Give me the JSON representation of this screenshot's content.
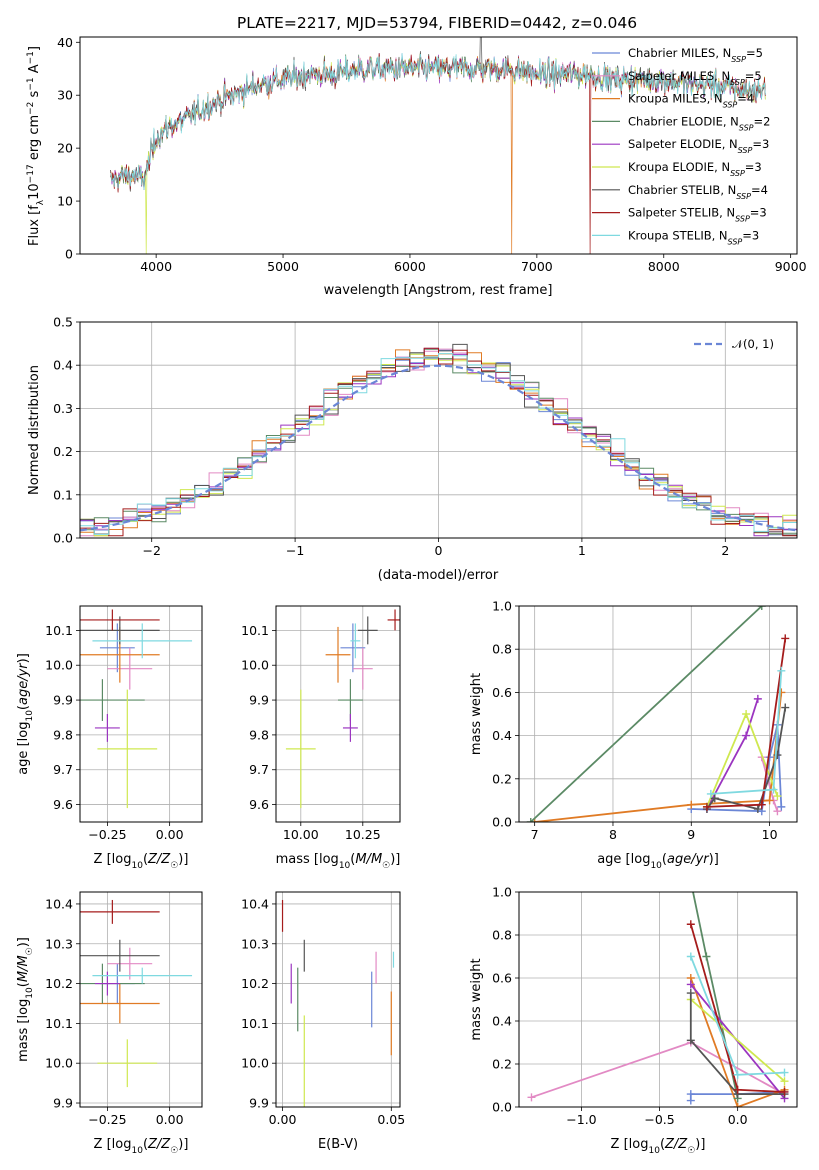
{
  "title": "PLATE=2217, MJD=53794, FIBERID=0442, z=0.046",
  "colors": {
    "Chabrier MILES": "#6b86d6",
    "Salpeter MILES": "#e28ac4",
    "Kroupa MILES": "#e07b25",
    "Chabrier ELODIE": "#5b8a65",
    "Salpeter ELODIE": "#9b35c0",
    "Kroupa ELODIE": "#cfe850",
    "Chabrier STELIB": "#555555",
    "Salpeter STELIB": "#a51c1c",
    "Kroupa STELIB": "#7fd9e0"
  },
  "chart_data": [
    {
      "type": "line",
      "id": "spectrum",
      "title": "PLATE=2217, MJD=53794, FIBERID=0442, z=0.046",
      "xlabel": "wavelength [Angstrom, rest frame]",
      "ylabel": "Flux [fλ10⁻¹⁷ erg cm⁻² s⁻¹ A⁻¹]",
      "xlim": [
        3400,
        9050
      ],
      "ylim": [
        0,
        41
      ],
      "xticks": [
        4000,
        5000,
        6000,
        7000,
        8000,
        9000
      ],
      "yticks": [
        0,
        10,
        20,
        30,
        40
      ],
      "grid": false,
      "legend_position": "right",
      "continuum": {
        "x": [
          3640,
          3800,
          3900,
          4000,
          4100,
          4200,
          4400,
          4600,
          4800,
          5000,
          5200,
          5400,
          5600,
          5800,
          6000,
          6200,
          6400,
          6600,
          6800,
          7000,
          7200,
          7400,
          7600,
          7800,
          8000,
          8200,
          8400,
          8600,
          8800
        ],
        "y": [
          14,
          15,
          14,
          22,
          24,
          25,
          28,
          30,
          32,
          33,
          34,
          34,
          35,
          35,
          35,
          35,
          35,
          35,
          35,
          34,
          34,
          34,
          33,
          33,
          33,
          32,
          32,
          31,
          31
        ]
      },
      "series": [
        {
          "name": "Chabrier MILES",
          "nssp": "5"
        },
        {
          "name": "Salpeter MILES",
          "nssp": "5"
        },
        {
          "name": "Kroupa MILES",
          "nssp": "4"
        },
        {
          "name": "Chabrier ELODIE",
          "nssp": "2"
        },
        {
          "name": "Salpeter ELODIE",
          "nssp": "3"
        },
        {
          "name": "Kroupa ELODIE",
          "nssp": "3"
        },
        {
          "name": "Chabrier STELIB",
          "nssp": "4"
        },
        {
          "name": "Salpeter STELIB",
          "nssp": "3"
        },
        {
          "name": "Kroupa STELIB",
          "nssp": "3"
        }
      ]
    },
    {
      "type": "step",
      "id": "residuals",
      "xlabel": "(data-model)/error",
      "ylabel": "Normed distribution",
      "xlim": [
        -2.5,
        2.5
      ],
      "ylim": [
        0,
        0.5
      ],
      "xticks": [
        -2,
        -1,
        0,
        1,
        2
      ],
      "yticks": [
        0.0,
        0.1,
        0.2,
        0.3,
        0.4,
        0.5
      ],
      "grid": true,
      "legend_position": "top-right",
      "legend": "𝒩(0, 1)",
      "bin_width": 0.1
    },
    {
      "type": "errorbar",
      "id": "age_vs_Z",
      "xlabel": "Z [log₁₀(Z/Z☉)]",
      "ylabel": "age  [log₁₀(age/yr)]",
      "xlim": [
        -0.36,
        0.13
      ],
      "ylim": [
        9.55,
        10.17
      ],
      "xticks": [
        -0.25,
        0.0
      ],
      "xtick_labels": [
        "−0.25",
        "0.00"
      ],
      "yticks": [
        9.6,
        9.7,
        9.8,
        9.9,
        10.0,
        10.1
      ],
      "points": [
        {
          "name": "Chabrier MILES",
          "x": -0.21,
          "xerr": 0.07,
          "y": 10.05,
          "yerr": 0.07
        },
        {
          "name": "Salpeter MILES",
          "x": -0.16,
          "xerr": 0.09,
          "y": 9.99,
          "yerr": 0.06
        },
        {
          "name": "Kroupa MILES",
          "x": -0.2,
          "xerr": 0.16,
          "y": 10.03,
          "yerr": 0.08
        },
        {
          "name": "Chabrier ELODIE",
          "x": -0.27,
          "xerr": 0.17,
          "y": 9.9,
          "yerr": 0.06
        },
        {
          "name": "Salpeter ELODIE",
          "x": -0.25,
          "xerr": 0.05,
          "y": 9.82,
          "yerr": 0.04
        },
        {
          "name": "Kroupa ELODIE",
          "x": -0.17,
          "xerr": 0.12,
          "y": 9.76,
          "yerr": 0.17
        },
        {
          "name": "Chabrier STELIB",
          "x": -0.2,
          "xerr": 0.16,
          "y": 10.1,
          "yerr": 0.04
        },
        {
          "name": "Salpeter STELIB",
          "x": -0.23,
          "xerr": 0.19,
          "y": 10.13,
          "yerr": 0.03
        },
        {
          "name": "Kroupa STELIB",
          "x": -0.11,
          "xerr": 0.2,
          "y": 10.07,
          "yerr": 0.05
        }
      ]
    },
    {
      "type": "errorbar",
      "id": "age_vs_mass",
      "xlabel": "mass [log₁₀(M/M☉)]",
      "ylabel": "",
      "xlim": [
        9.9,
        10.4
      ],
      "ylim": [
        9.55,
        10.17
      ],
      "xticks": [
        10.0,
        10.25
      ],
      "xtick_labels": [
        "10.00",
        "10.25"
      ],
      "yticks": [
        9.6,
        9.7,
        9.8,
        9.9,
        10.0,
        10.1
      ],
      "points": [
        {
          "name": "Chabrier MILES",
          "x": 10.21,
          "xerr": 0.05,
          "y": 10.05,
          "yerr": 0.07
        },
        {
          "name": "Salpeter MILES",
          "x": 10.25,
          "xerr": 0.04,
          "y": 9.99,
          "yerr": 0.06
        },
        {
          "name": "Kroupa MILES",
          "x": 10.15,
          "xerr": 0.05,
          "y": 10.03,
          "yerr": 0.08
        },
        {
          "name": "Chabrier ELODIE",
          "x": 10.2,
          "xerr": 0.05,
          "y": 9.9,
          "yerr": 0.06
        },
        {
          "name": "Salpeter ELODIE",
          "x": 10.2,
          "xerr": 0.03,
          "y": 9.82,
          "yerr": 0.04
        },
        {
          "name": "Kroupa ELODIE",
          "x": 10.0,
          "xerr": 0.06,
          "y": 9.76,
          "yerr": 0.17
        },
        {
          "name": "Chabrier STELIB",
          "x": 10.27,
          "xerr": 0.04,
          "y": 10.1,
          "yerr": 0.04
        },
        {
          "name": "Salpeter STELIB",
          "x": 10.38,
          "xerr": 0.03,
          "y": 10.13,
          "yerr": 0.03
        },
        {
          "name": "Kroupa STELIB",
          "x": 10.22,
          "xerr": 0.02,
          "y": 10.07,
          "yerr": 0.05
        }
      ]
    },
    {
      "type": "line",
      "id": "massweight_vs_age",
      "xlabel": "age  [log₁₀(age/yr)]",
      "ylabel": "mass weight",
      "xlim": [
        6.8,
        10.35
      ],
      "ylim": [
        0,
        1
      ],
      "xticks": [
        7,
        8,
        9,
        10
      ],
      "yticks": [
        0.0,
        0.2,
        0.4,
        0.6,
        0.8,
        1.0
      ],
      "grid": true,
      "series": [
        {
          "name": "Chabrier MILES",
          "x": [
            9.0,
            9.9,
            10.0,
            10.1,
            10.15
          ],
          "y": [
            0.06,
            0.05,
            0.3,
            0.45,
            0.07
          ]
        },
        {
          "name": "Salpeter MILES",
          "x": [
            9.9,
            10.05,
            10.1
          ],
          "y": [
            0.3,
            0.1,
            0.05
          ]
        },
        {
          "name": "Kroupa MILES",
          "x": [
            7.0,
            9.0,
            10.0,
            10.15
          ],
          "y": [
            0.0,
            0.08,
            0.1,
            0.6
          ]
        },
        {
          "name": "Chabrier ELODIE",
          "x": [
            6.95,
            9.9
          ],
          "y": [
            0.0,
            1.0
          ]
        },
        {
          "name": "Salpeter ELODIE",
          "x": [
            9.2,
            9.7,
            9.85
          ],
          "y": [
            0.06,
            0.4,
            0.57
          ]
        },
        {
          "name": "Kroupa ELODIE",
          "x": [
            9.2,
            9.7,
            10.1
          ],
          "y": [
            0.07,
            0.5,
            0.12
          ]
        },
        {
          "name": "Chabrier STELIB",
          "x": [
            9.2,
            9.3,
            9.85,
            10.1,
            10.2
          ],
          "y": [
            0.06,
            0.11,
            0.06,
            0.31,
            0.53
          ]
        },
        {
          "name": "Salpeter STELIB",
          "x": [
            9.2,
            9.9,
            10.2
          ],
          "y": [
            0.07,
            0.08,
            0.85
          ]
        },
        {
          "name": "Kroupa STELIB",
          "x": [
            9.25,
            10.05,
            10.15
          ],
          "y": [
            0.13,
            0.15,
            0.7
          ]
        }
      ]
    },
    {
      "type": "errorbar",
      "id": "mass_vs_Z",
      "xlabel": "Z [log₁₀(Z/Z☉)]",
      "ylabel": "mass [log₁₀(M/M☉)]",
      "xlim": [
        -0.36,
        0.13
      ],
      "ylim": [
        9.89,
        10.43
      ],
      "xticks": [
        -0.25,
        0.0
      ],
      "xtick_labels": [
        "−0.25",
        "0.00"
      ],
      "yticks": [
        9.9,
        10.0,
        10.1,
        10.2,
        10.3,
        10.4
      ],
      "points": [
        {
          "name": "Chabrier MILES",
          "x": -0.21,
          "xerr": 0.07,
          "y": 10.2,
          "yerr": 0.05
        },
        {
          "name": "Salpeter MILES",
          "x": -0.16,
          "xerr": 0.09,
          "y": 10.25,
          "yerr": 0.04
        },
        {
          "name": "Kroupa MILES",
          "x": -0.2,
          "xerr": 0.16,
          "y": 10.15,
          "yerr": 0.05
        },
        {
          "name": "Chabrier ELODIE",
          "x": -0.27,
          "xerr": 0.17,
          "y": 10.2,
          "yerr": 0.05
        },
        {
          "name": "Salpeter ELODIE",
          "x": -0.25,
          "xerr": 0.05,
          "y": 10.2,
          "yerr": 0.03
        },
        {
          "name": "Kroupa ELODIE",
          "x": -0.17,
          "xerr": 0.12,
          "y": 10.0,
          "yerr": 0.06
        },
        {
          "name": "Chabrier STELIB",
          "x": -0.2,
          "xerr": 0.16,
          "y": 10.27,
          "yerr": 0.04
        },
        {
          "name": "Salpeter STELIB",
          "x": -0.23,
          "xerr": 0.19,
          "y": 10.38,
          "yerr": 0.03
        },
        {
          "name": "Kroupa STELIB",
          "x": -0.11,
          "xerr": 0.2,
          "y": 10.22,
          "yerr": 0.02
        }
      ]
    },
    {
      "type": "errorbar",
      "id": "mass_vs_ebv",
      "xlabel": "E(B-V)",
      "ylabel": "",
      "xlim": [
        -0.003,
        0.054
      ],
      "ylim": [
        9.89,
        10.43
      ],
      "xticks": [
        0.0,
        0.05
      ],
      "xtick_labels": [
        "0.00",
        "0.05"
      ],
      "yticks": [
        9.9,
        10.0,
        10.1,
        10.2,
        10.3,
        10.4
      ],
      "points": [
        {
          "name": "Chabrier MILES",
          "x": 0.041,
          "xerr": 0,
          "y": 10.16,
          "yerr": 0.07
        },
        {
          "name": "Salpeter MILES",
          "x": 0.043,
          "xerr": 0,
          "y": 10.24,
          "yerr": 0.04
        },
        {
          "name": "Kroupa MILES",
          "x": 0.05,
          "xerr": 0,
          "y": 10.1,
          "yerr": 0.08
        },
        {
          "name": "Chabrier ELODIE",
          "x": 0.007,
          "xerr": 0,
          "y": 10.16,
          "yerr": 0.08
        },
        {
          "name": "Salpeter ELODIE",
          "x": 0.004,
          "xerr": 0,
          "y": 10.2,
          "yerr": 0.05
        },
        {
          "name": "Kroupa ELODIE",
          "x": 0.01,
          "xerr": 0,
          "y": 10.0,
          "yerr": 0.12
        },
        {
          "name": "Chabrier STELIB",
          "x": 0.01,
          "xerr": 0,
          "y": 10.27,
          "yerr": 0.04
        },
        {
          "name": "Salpeter STELIB",
          "x": 0.0,
          "xerr": 0,
          "y": 10.37,
          "yerr": 0.04
        },
        {
          "name": "Kroupa STELIB",
          "x": 0.051,
          "xerr": 0,
          "y": 10.26,
          "yerr": 0.02
        }
      ]
    },
    {
      "type": "line",
      "id": "massweight_vs_Z",
      "xlabel": "Z [log₁₀(Z/Z☉)]",
      "ylabel": "mass weight",
      "xlim": [
        -1.4,
        0.38
      ],
      "ylim": [
        0,
        1
      ],
      "xticks": [
        -1.0,
        -0.5,
        0.0
      ],
      "xtick_labels": [
        "−1.0",
        "−0.5",
        "0.0"
      ],
      "yticks": [
        0.0,
        0.2,
        0.4,
        0.6,
        0.8,
        1.0
      ],
      "grid": true,
      "series": [
        {
          "name": "Chabrier MILES",
          "x": [
            -0.3,
            -0.3,
            0.0,
            0.3
          ],
          "y": [
            0.03,
            0.06,
            0.06,
            0.07
          ]
        },
        {
          "name": "Salpeter MILES",
          "x": [
            -1.32,
            -0.3,
            0.3
          ],
          "y": [
            0.045,
            0.3,
            0.06
          ]
        },
        {
          "name": "Kroupa MILES",
          "x": [
            -0.3,
            0.0,
            0.3
          ],
          "y": [
            0.6,
            0.0,
            0.08
          ]
        },
        {
          "name": "Chabrier ELODIE",
          "x": [
            -0.3,
            -0.2,
            0.0
          ],
          "y": [
            1.05,
            0.7,
            0.04
          ]
        },
        {
          "name": "Salpeter ELODIE",
          "x": [
            -0.3,
            0.3
          ],
          "y": [
            0.57,
            0.04
          ]
        },
        {
          "name": "Kroupa ELODIE",
          "x": [
            -0.3,
            0.3
          ],
          "y": [
            0.5,
            0.12
          ]
        },
        {
          "name": "Chabrier STELIB",
          "x": [
            -0.3,
            -0.3,
            0.0,
            0.3
          ],
          "y": [
            0.53,
            0.31,
            0.06,
            0.06
          ]
        },
        {
          "name": "Salpeter STELIB",
          "x": [
            -0.3,
            0.0,
            0.3
          ],
          "y": [
            0.85,
            0.08,
            0.07
          ]
        },
        {
          "name": "Kroupa STELIB",
          "x": [
            -0.3,
            0.0,
            0.3
          ],
          "y": [
            0.7,
            0.15,
            0.16
          ]
        }
      ]
    }
  ]
}
